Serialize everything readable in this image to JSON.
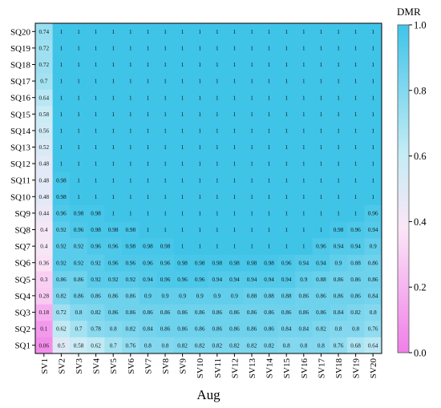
{
  "chart_data": {
    "type": "heatmap",
    "xlabel": "Aug",
    "ylabel": "",
    "x_categories": [
      "SV1",
      "SV2",
      "SV3",
      "SV4",
      "SV5",
      "SV6",
      "SV7",
      "SV8",
      "SV9",
      "SV10",
      "SV11",
      "SV12",
      "SV13",
      "SV14",
      "SV15",
      "SV16",
      "SV17",
      "SV18",
      "SV19",
      "SV20"
    ],
    "y_categories": [
      "SQ1",
      "SQ2",
      "SQ3",
      "SQ4",
      "SQ5",
      "SQ6",
      "SQ7",
      "SQ8",
      "SQ9",
      "SQ10",
      "SQ11",
      "SQ12",
      "SQ13",
      "SQ14",
      "SQ15",
      "SQ16",
      "SQ17",
      "SQ18",
      "SQ19",
      "SQ20"
    ],
    "values": [
      [
        0.06,
        0.5,
        0.58,
        0.62,
        0.7,
        0.76,
        0.8,
        0.8,
        0.82,
        0.82,
        0.82,
        0.82,
        0.82,
        0.82,
        0.8,
        0.8,
        0.8,
        0.76,
        0.68,
        0.64
      ],
      [
        0.1,
        0.62,
        0.7,
        0.78,
        0.8,
        0.82,
        0.84,
        0.86,
        0.86,
        0.86,
        0.86,
        0.86,
        0.86,
        0.86,
        0.84,
        0.84,
        0.82,
        0.8,
        0.8,
        0.76
      ],
      [
        0.18,
        0.72,
        0.8,
        0.82,
        0.86,
        0.86,
        0.86,
        0.86,
        0.86,
        0.86,
        0.86,
        0.86,
        0.86,
        0.86,
        0.86,
        0.86,
        0.86,
        0.84,
        0.82,
        0.8
      ],
      [
        0.28,
        0.82,
        0.86,
        0.86,
        0.86,
        0.86,
        0.9,
        0.9,
        0.9,
        0.9,
        0.9,
        0.9,
        0.88,
        0.88,
        0.88,
        0.86,
        0.86,
        0.86,
        0.86,
        0.84
      ],
      [
        0.3,
        0.86,
        0.86,
        0.92,
        0.92,
        0.92,
        0.94,
        0.96,
        0.96,
        0.96,
        0.94,
        0.94,
        0.94,
        0.94,
        0.94,
        0.9,
        0.88,
        0.86,
        0.86,
        0.86
      ],
      [
        0.36,
        0.92,
        0.92,
        0.92,
        0.96,
        0.96,
        0.96,
        0.96,
        0.98,
        0.98,
        0.98,
        0.98,
        0.98,
        0.98,
        0.96,
        0.94,
        0.94,
        0.9,
        0.88,
        0.86
      ],
      [
        0.4,
        0.92,
        0.92,
        0.96,
        0.96,
        0.98,
        0.98,
        0.98,
        1,
        1,
        1,
        1,
        1,
        1,
        1,
        1,
        0.96,
        0.94,
        0.94,
        0.9
      ],
      [
        0.4,
        0.92,
        0.96,
        0.98,
        0.98,
        0.98,
        1,
        1,
        1,
        1,
        1,
        1,
        1,
        1,
        1,
        1,
        1,
        0.98,
        0.96,
        0.94
      ],
      [
        0.44,
        0.96,
        0.98,
        0.98,
        1,
        1,
        1,
        1,
        1,
        1,
        1,
        1,
        1,
        1,
        1,
        1,
        1,
        1,
        1,
        0.96
      ],
      [
        0.48,
        0.98,
        1,
        1,
        1,
        1,
        1,
        1,
        1,
        1,
        1,
        1,
        1,
        1,
        1,
        1,
        1,
        1,
        1,
        1
      ],
      [
        0.48,
        0.98,
        1,
        1,
        1,
        1,
        1,
        1,
        1,
        1,
        1,
        1,
        1,
        1,
        1,
        1,
        1,
        1,
        1,
        1
      ],
      [
        0.48,
        1,
        1,
        1,
        1,
        1,
        1,
        1,
        1,
        1,
        1,
        1,
        1,
        1,
        1,
        1,
        1,
        1,
        1,
        1
      ],
      [
        0.52,
        1,
        1,
        1,
        1,
        1,
        1,
        1,
        1,
        1,
        1,
        1,
        1,
        1,
        1,
        1,
        1,
        1,
        1,
        1
      ],
      [
        0.56,
        1,
        1,
        1,
        1,
        1,
        1,
        1,
        1,
        1,
        1,
        1,
        1,
        1,
        1,
        1,
        1,
        1,
        1,
        1
      ],
      [
        0.58,
        1,
        1,
        1,
        1,
        1,
        1,
        1,
        1,
        1,
        1,
        1,
        1,
        1,
        1,
        1,
        1,
        1,
        1,
        1
      ],
      [
        0.64,
        1,
        1,
        1,
        1,
        1,
        1,
        1,
        1,
        1,
        1,
        1,
        1,
        1,
        1,
        1,
        1,
        1,
        1,
        1
      ],
      [
        0.7,
        1,
        1,
        1,
        1,
        1,
        1,
        1,
        1,
        1,
        1,
        1,
        1,
        1,
        1,
        1,
        1,
        1,
        1,
        1
      ],
      [
        0.72,
        1,
        1,
        1,
        1,
        1,
        1,
        1,
        1,
        1,
        1,
        1,
        1,
        1,
        1,
        1,
        1,
        1,
        1,
        1
      ],
      [
        0.72,
        1,
        1,
        1,
        1,
        1,
        1,
        1,
        1,
        1,
        1,
        1,
        1,
        1,
        1,
        1,
        1,
        1,
        1,
        1
      ],
      [
        0.74,
        1,
        1,
        1,
        1,
        1,
        1,
        1,
        1,
        1,
        1,
        1,
        1,
        1,
        1,
        1,
        1,
        1,
        1,
        1
      ]
    ],
    "colorbar": {
      "label": "DMR",
      "range": [
        0,
        1
      ],
      "ticks": [
        "0.0",
        "0.2",
        "0.4",
        "0.6",
        "0.8",
        "1.0"
      ],
      "colors": [
        "#f07ee8",
        "#fbe6f7",
        "#c6ecf5",
        "#3fc4e8"
      ]
    },
    "grid": false,
    "legend": "colorbar-right"
  }
}
